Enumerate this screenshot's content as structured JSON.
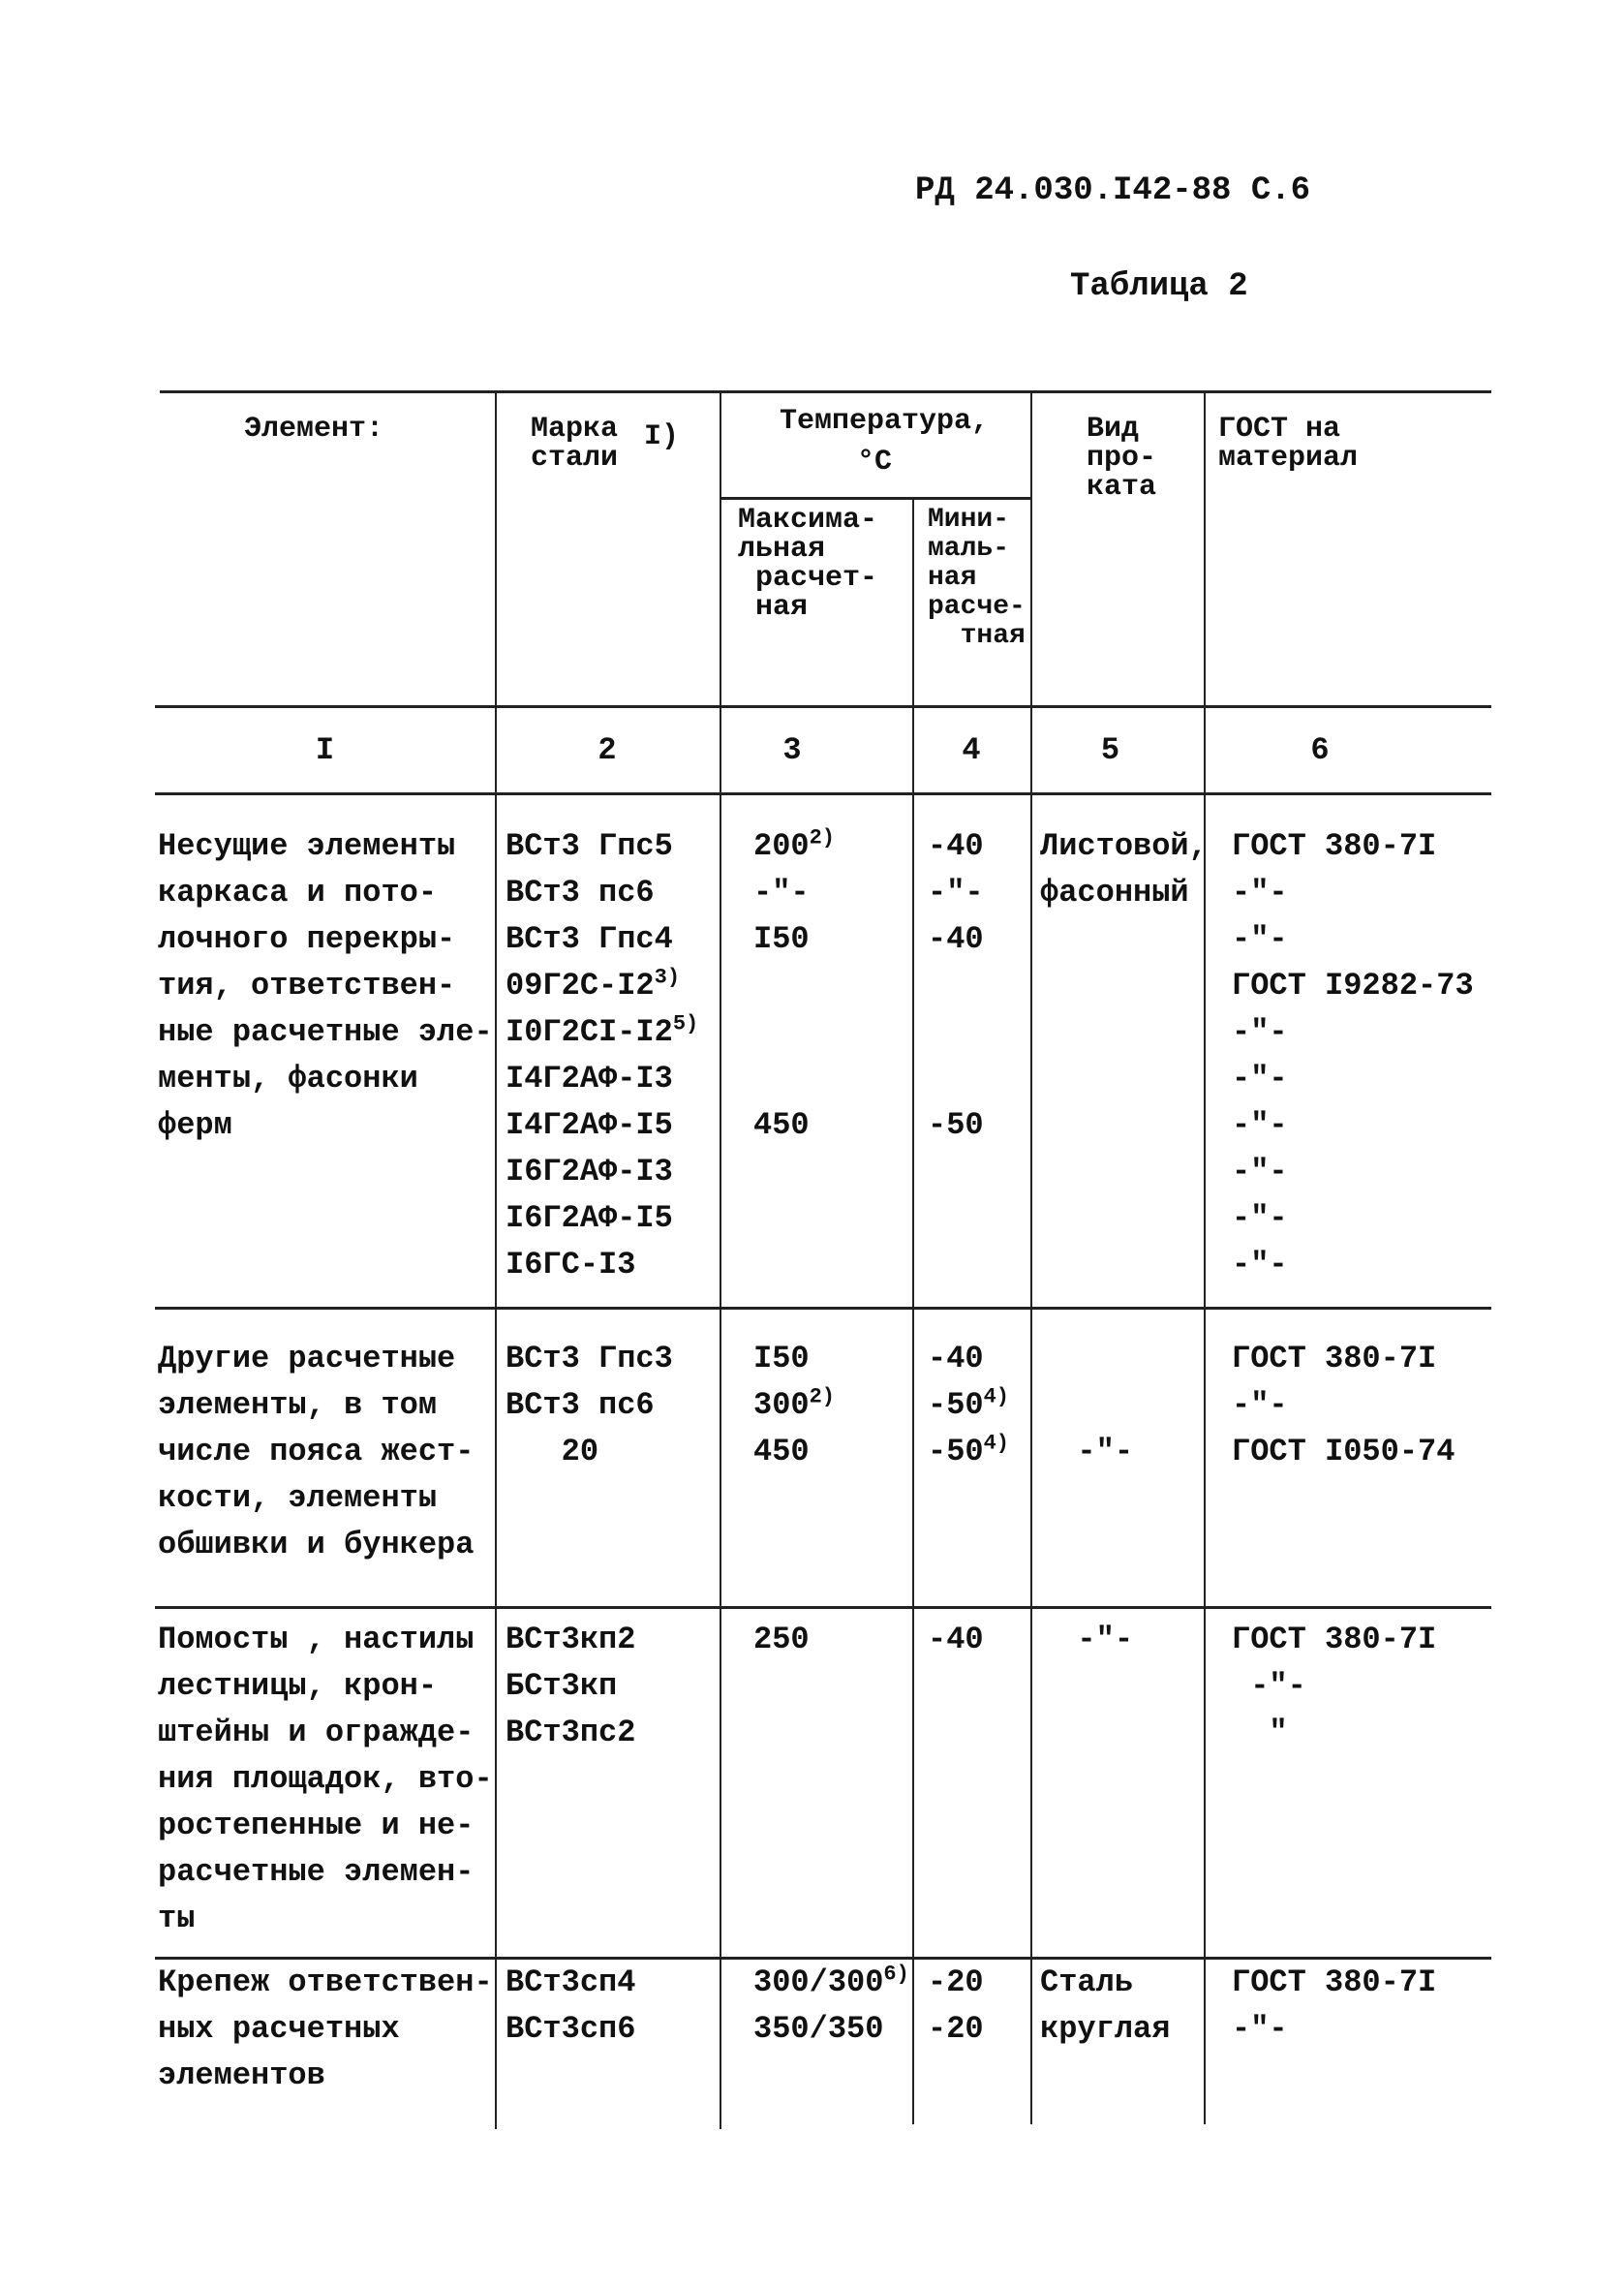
{
  "page_header": "РД 24.030.I42-88 С.6",
  "table_caption": "Таблица 2",
  "columns": {
    "element": "Элемент:",
    "steel_grade": "Марка\nстали",
    "steel_grade_note": "I)",
    "temperature": "Температура,",
    "temperature_unit": "°C",
    "temp_max": "Максима-\nльная\n расчет-\n ная",
    "temp_min": "Мини-\nмаль-\nная\nрасче-\n  тная",
    "rolled_type": "Вид\nпро-\nката",
    "gost": "ГОСТ на\nматериал"
  },
  "column_numbers": [
    "I",
    "2",
    "3",
    "4",
    "5",
    "6"
  ],
  "rows": [
    {
      "element": [
        "Несущие элементы",
        "каркаса и пото-",
        "лочного перекры-",
        "тия, ответствен-",
        "ные расчетные эле-",
        "менты, фасонки",
        "ферм"
      ],
      "steel_grade": [
        {
          "t": "ВСт3 Гпс5"
        },
        {
          "t": "ВСт3 пс6"
        },
        {
          "t": "ВСт3 Гпс4"
        },
        {
          "t": "09Г2С-I2",
          "sup": "3)"
        },
        {
          "t": "I0Г2СI-I2",
          "sup": "5)"
        },
        {
          "t": "I4Г2АФ-I3"
        },
        {
          "t": "I4Г2АФ-I5"
        },
        {
          "t": "I6Г2АФ-I3"
        },
        {
          "t": "I6Г2АФ-I5"
        },
        {
          "t": "I6ГС-I3"
        }
      ],
      "temp_max": [
        {
          "t": "200",
          "sup": "2)"
        },
        {
          "t": "-\"-"
        },
        {
          "t": "I50"
        },
        {
          "t": ""
        },
        {
          "t": ""
        },
        {
          "t": ""
        },
        {
          "t": "450"
        }
      ],
      "temp_min": [
        {
          "t": "-40"
        },
        {
          "t": "-\"-"
        },
        {
          "t": "-40"
        },
        {
          "t": ""
        },
        {
          "t": ""
        },
        {
          "t": ""
        },
        {
          "t": "-50"
        }
      ],
      "rolled_type": [
        "Листовой,",
        "фасонный"
      ],
      "gost": [
        "ГОСТ 380-7I",
        "-\"-",
        "-\"-",
        "ГОСТ I9282-73",
        "-\"-",
        "-\"-",
        "-\"-",
        "-\"-",
        "-\"-",
        "-\"-"
      ]
    },
    {
      "element": [
        "Другие расчетные",
        "элементы, в том",
        "числе пояса жест-",
        "кости, элементы",
        "обшивки и бункера"
      ],
      "steel_grade": [
        {
          "t": "ВСт3 Гпс3"
        },
        {
          "t": "ВСт3 пс6"
        },
        {
          "t": "   20"
        }
      ],
      "temp_max": [
        {
          "t": "I50"
        },
        {
          "t": "300",
          "sup": "2)"
        },
        {
          "t": "450"
        }
      ],
      "temp_min": [
        {
          "t": "-40"
        },
        {
          "t": "-50",
          "sup": "4)"
        },
        {
          "t": "-50",
          "sup": "4)"
        }
      ],
      "rolled_type": [
        "",
        "",
        "  -\"-"
      ],
      "gost": [
        "ГОСТ 380-7I",
        "-\"-",
        "ГОСТ I050-74"
      ]
    },
    {
      "element": [
        "Помосты , настилы",
        "лестницы, крон-",
        "штейны и огражде-",
        "ния площадок, вто-",
        "ростепенные и не-",
        "расчетные элемен-",
        "ты"
      ],
      "steel_grade": [
        {
          "t": "ВСт3кп2"
        },
        {
          "t": "БСт3кп"
        },
        {
          "t": "ВСт3пс2"
        }
      ],
      "temp_max": [
        {
          "t": "250"
        }
      ],
      "temp_min": [
        {
          "t": "-40"
        }
      ],
      "rolled_type": [
        "  -\"-"
      ],
      "gost": [
        "ГОСТ 380-7I",
        " -\"-",
        "  \""
      ]
    },
    {
      "element": [
        "Крепеж ответствен-",
        "ных расчетных",
        "элементов"
      ],
      "steel_grade": [
        {
          "t": "ВСт3сп4"
        },
        {
          "t": "ВСт3сп6"
        }
      ],
      "temp_max": [
        {
          "t": "300/300",
          "sup": "6)"
        },
        {
          "t": "350/350"
        }
      ],
      "temp_min": [
        {
          "t": "-20"
        },
        {
          "t": "-20"
        }
      ],
      "rolled_type": [
        "Сталь",
        "круглая"
      ],
      "gost": [
        "ГОСТ 380-7I",
        "-\"-"
      ]
    }
  ]
}
